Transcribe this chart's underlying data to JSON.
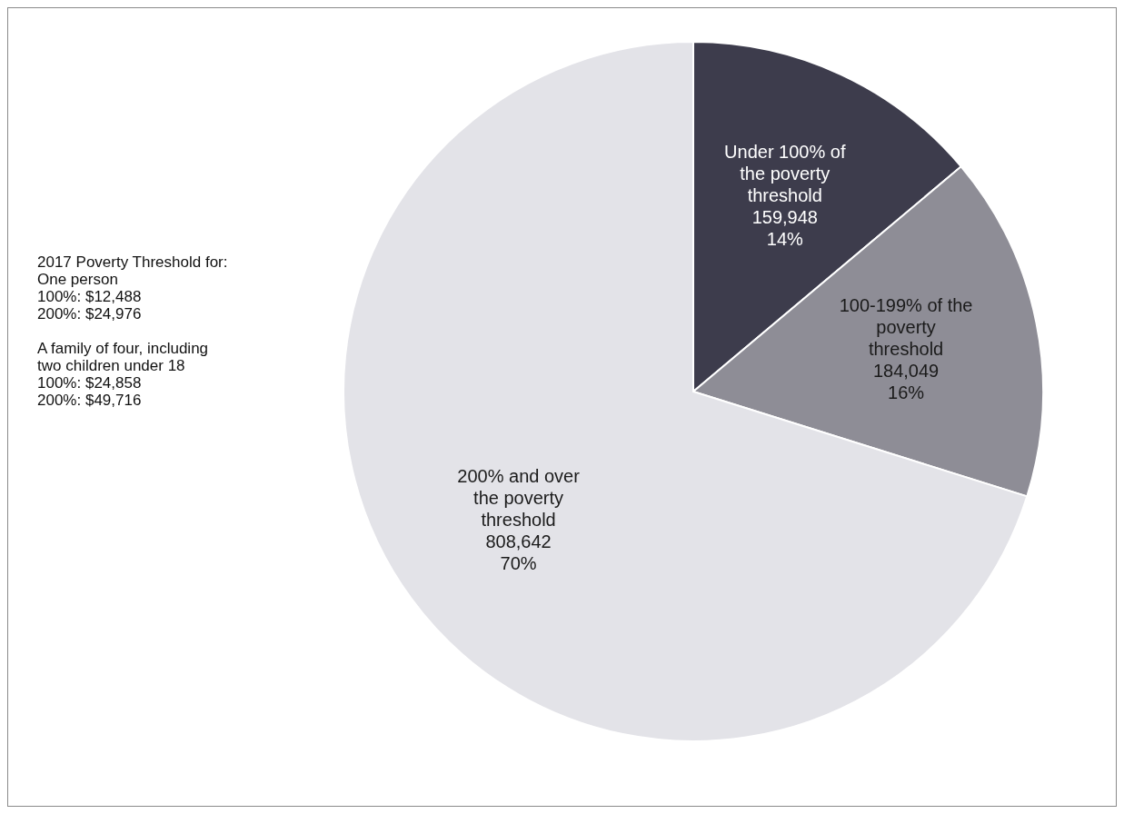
{
  "chart_data": {
    "type": "pie",
    "categories": [
      "Under 100% of the poverty threshold",
      "100-199% of the poverty threshold",
      "200% and over the poverty threshold"
    ],
    "values": [
      159948,
      184049,
      808642
    ],
    "colors": [
      "#3d3c4c",
      "#8e8d96",
      "#e3e3e8"
    ],
    "value_labels": [
      "159,948\n14%",
      "184,049\n16%",
      "808,642\n70%"
    ],
    "annotations": [
      "2017 Poverty Threshold for:\nOne person\n100%: $12,488\n200%: $24,976",
      "A family of four, including\ntwo children under 18\n100%: $24,858\n200%: $49,716"
    ],
    "legend": false
  }
}
